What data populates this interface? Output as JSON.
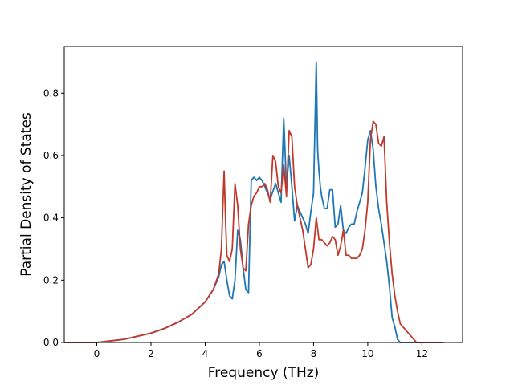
{
  "chart_data": {
    "type": "line",
    "xlabel": "Frequency (THz)",
    "ylabel": "Partial Density of States",
    "xlim": [
      -1.2,
      13.5
    ],
    "ylim": [
      0,
      0.95
    ],
    "xticks": [
      0,
      2,
      4,
      6,
      8,
      10,
      12
    ],
    "yticks": [
      0.0,
      0.2,
      0.4,
      0.6,
      0.8
    ],
    "ytick_labels": [
      "0.0",
      "0.2",
      "0.4",
      "0.6",
      "0.8"
    ],
    "grid": false,
    "series": [
      {
        "color": "#1f77b4",
        "x": [
          -1.2,
          0,
          0.5,
          1,
          1.5,
          2,
          2.5,
          3,
          3.5,
          4,
          4.3,
          4.5,
          4.6,
          4.7,
          4.8,
          4.9,
          5.0,
          5.1,
          5.2,
          5.3,
          5.4,
          5.5,
          5.6,
          5.7,
          5.8,
          5.9,
          6.0,
          6.1,
          6.2,
          6.4,
          6.6,
          6.7,
          6.8,
          6.9,
          7.0,
          7.1,
          7.2,
          7.3,
          7.4,
          7.5,
          7.6,
          7.7,
          7.8,
          7.9,
          8.0,
          8.1,
          8.15,
          8.2,
          8.25,
          8.3,
          8.4,
          8.5,
          8.6,
          8.7,
          8.8,
          8.9,
          9.0,
          9.1,
          9.2,
          9.3,
          9.4,
          9.5,
          9.6,
          9.7,
          9.8,
          9.9,
          10.0,
          10.1,
          10.2,
          10.3,
          10.4,
          10.5,
          10.6,
          10.7,
          10.8,
          10.9,
          11.0,
          11.1,
          11.2,
          11.4,
          11.8,
          12.8
        ],
        "y": [
          0,
          0,
          0.005,
          0.01,
          0.02,
          0.03,
          0.045,
          0.065,
          0.09,
          0.13,
          0.17,
          0.21,
          0.25,
          0.26,
          0.2,
          0.15,
          0.14,
          0.2,
          0.36,
          0.33,
          0.24,
          0.17,
          0.16,
          0.52,
          0.53,
          0.52,
          0.53,
          0.52,
          0.5,
          0.46,
          0.51,
          0.48,
          0.45,
          0.72,
          0.5,
          0.6,
          0.5,
          0.39,
          0.44,
          0.42,
          0.4,
          0.38,
          0.35,
          0.42,
          0.48,
          0.9,
          0.62,
          0.55,
          0.5,
          0.47,
          0.43,
          0.43,
          0.49,
          0.49,
          0.37,
          0.38,
          0.44,
          0.36,
          0.35,
          0.37,
          0.38,
          0.38,
          0.42,
          0.45,
          0.48,
          0.56,
          0.65,
          0.68,
          0.62,
          0.5,
          0.43,
          0.38,
          0.32,
          0.26,
          0.18,
          0.08,
          0.05,
          0.01,
          0,
          0,
          0,
          0
        ]
      },
      {
        "color": "#c0392b",
        "x": [
          -1.2,
          0,
          0.5,
          1,
          1.5,
          2,
          2.5,
          3,
          3.5,
          4,
          4.3,
          4.5,
          4.6,
          4.65,
          4.7,
          4.75,
          4.8,
          4.9,
          5.0,
          5.1,
          5.2,
          5.3,
          5.4,
          5.5,
          5.6,
          5.7,
          5.8,
          5.9,
          6.0,
          6.1,
          6.2,
          6.3,
          6.4,
          6.5,
          6.6,
          6.7,
          6.8,
          6.9,
          7.0,
          7.1,
          7.2,
          7.3,
          7.4,
          7.5,
          7.6,
          7.7,
          7.8,
          7.9,
          8.0,
          8.1,
          8.2,
          8.3,
          8.4,
          8.5,
          8.6,
          8.7,
          8.8,
          8.9,
          9.0,
          9.1,
          9.2,
          9.3,
          9.4,
          9.5,
          9.6,
          9.7,
          9.8,
          9.9,
          10.0,
          10.1,
          10.2,
          10.3,
          10.4,
          10.5,
          10.6,
          10.7,
          10.8,
          10.9,
          11.0,
          11.1,
          11.2,
          11.4,
          11.6,
          11.8,
          12.8
        ],
        "y": [
          0,
          0,
          0.005,
          0.01,
          0.02,
          0.03,
          0.045,
          0.065,
          0.09,
          0.13,
          0.17,
          0.22,
          0.3,
          0.43,
          0.55,
          0.4,
          0.28,
          0.26,
          0.3,
          0.51,
          0.44,
          0.3,
          0.24,
          0.23,
          0.38,
          0.44,
          0.47,
          0.48,
          0.5,
          0.5,
          0.51,
          0.49,
          0.45,
          0.6,
          0.58,
          0.5,
          0.48,
          0.57,
          0.47,
          0.68,
          0.66,
          0.5,
          0.44,
          0.4,
          0.36,
          0.3,
          0.24,
          0.25,
          0.3,
          0.4,
          0.33,
          0.33,
          0.32,
          0.31,
          0.32,
          0.34,
          0.33,
          0.28,
          0.31,
          0.36,
          0.28,
          0.28,
          0.27,
          0.27,
          0.27,
          0.28,
          0.3,
          0.36,
          0.45,
          0.65,
          0.71,
          0.7,
          0.64,
          0.63,
          0.66,
          0.45,
          0.32,
          0.22,
          0.15,
          0.1,
          0.06,
          0.04,
          0.02,
          0,
          0
        ]
      }
    ]
  }
}
